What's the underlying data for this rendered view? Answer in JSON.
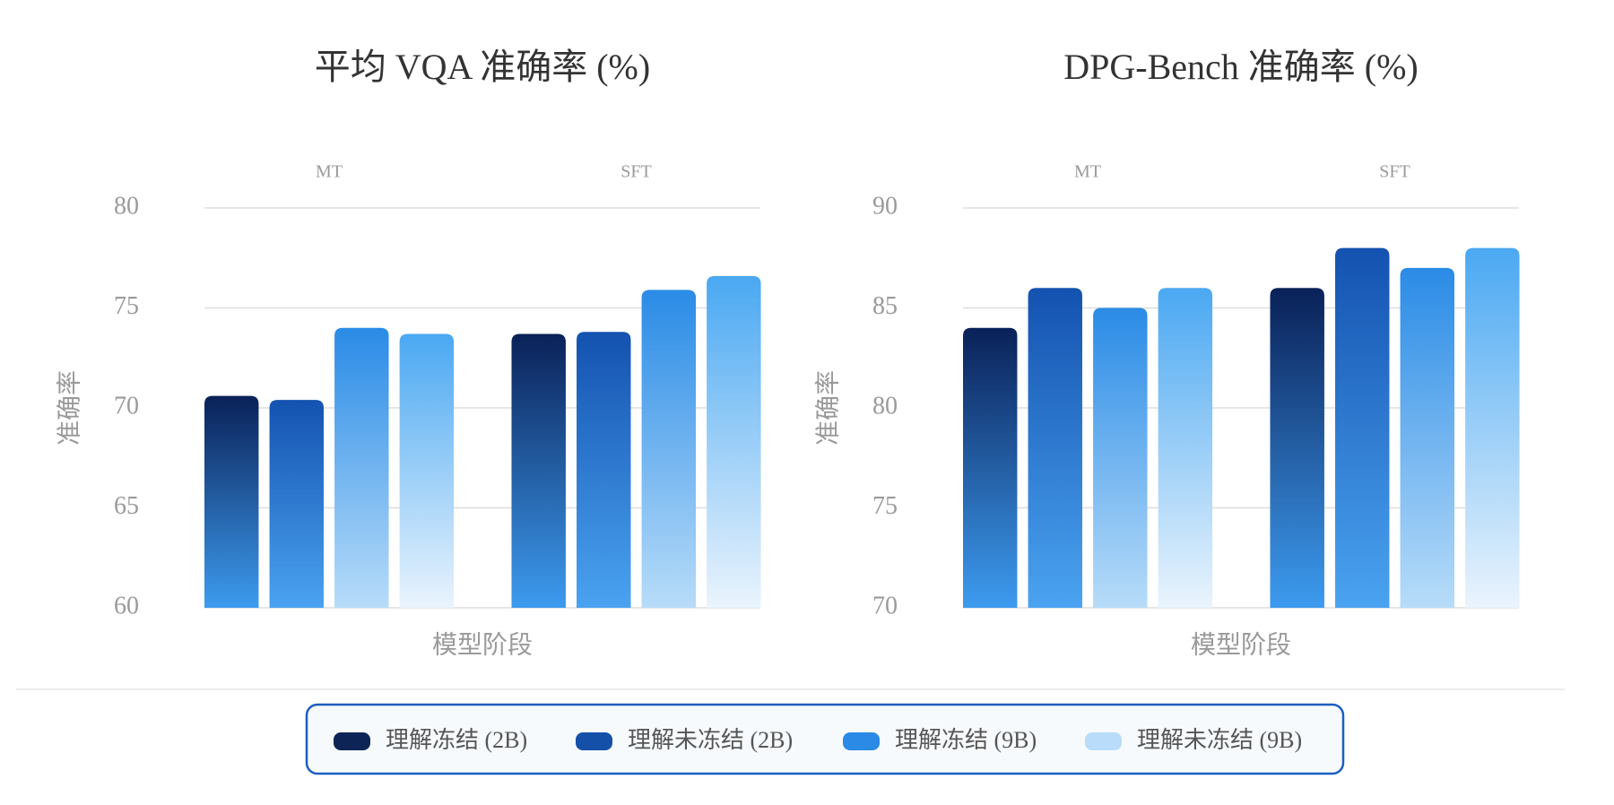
{
  "chart_data": [
    {
      "type": "bar",
      "title": "平均 VQA 准确率 (%)",
      "x_label": "模型阶段",
      "y_label": "准确率",
      "categories": [
        "MT",
        "SFT"
      ],
      "ylim": [
        60,
        80
      ],
      "yticks": [
        60,
        65,
        70,
        75,
        80
      ],
      "grid": true,
      "series": [
        {
          "name": "理解冻结 (2B)",
          "color": "#0d2556",
          "values": [
            70.6,
            73.7
          ]
        },
        {
          "name": "理解未冻结 (2B)",
          "color": "#1450a8",
          "values": [
            70.4,
            73.8
          ]
        },
        {
          "name": "理解冻结 (9B)",
          "color": "#2a8ae5",
          "values": [
            74.0,
            75.9
          ]
        },
        {
          "name": "理解未冻结 (9B)",
          "color": "#b8dcf9",
          "values": [
            73.7,
            76.6
          ]
        }
      ]
    },
    {
      "type": "bar",
      "title": "DPG-Bench 准确率 (%)",
      "x_label": "模型阶段",
      "y_label": "准确率",
      "categories": [
        "MT",
        "SFT"
      ],
      "ylim": [
        70,
        90
      ],
      "yticks": [
        70,
        75,
        80,
        85,
        90
      ],
      "grid": true,
      "series": [
        {
          "name": "理解冻结 (2B)",
          "color": "#0d2556",
          "values": [
            84,
            86
          ]
        },
        {
          "name": "理解未冻结 (2B)",
          "color": "#1450a8",
          "values": [
            86,
            88
          ]
        },
        {
          "name": "理解冻结 (9B)",
          "color": "#2a8ae5",
          "values": [
            85,
            87
          ]
        },
        {
          "name": "理解未冻结 (9B)",
          "color": "#b8dcf9",
          "values": [
            86,
            88
          ]
        }
      ]
    }
  ]
}
